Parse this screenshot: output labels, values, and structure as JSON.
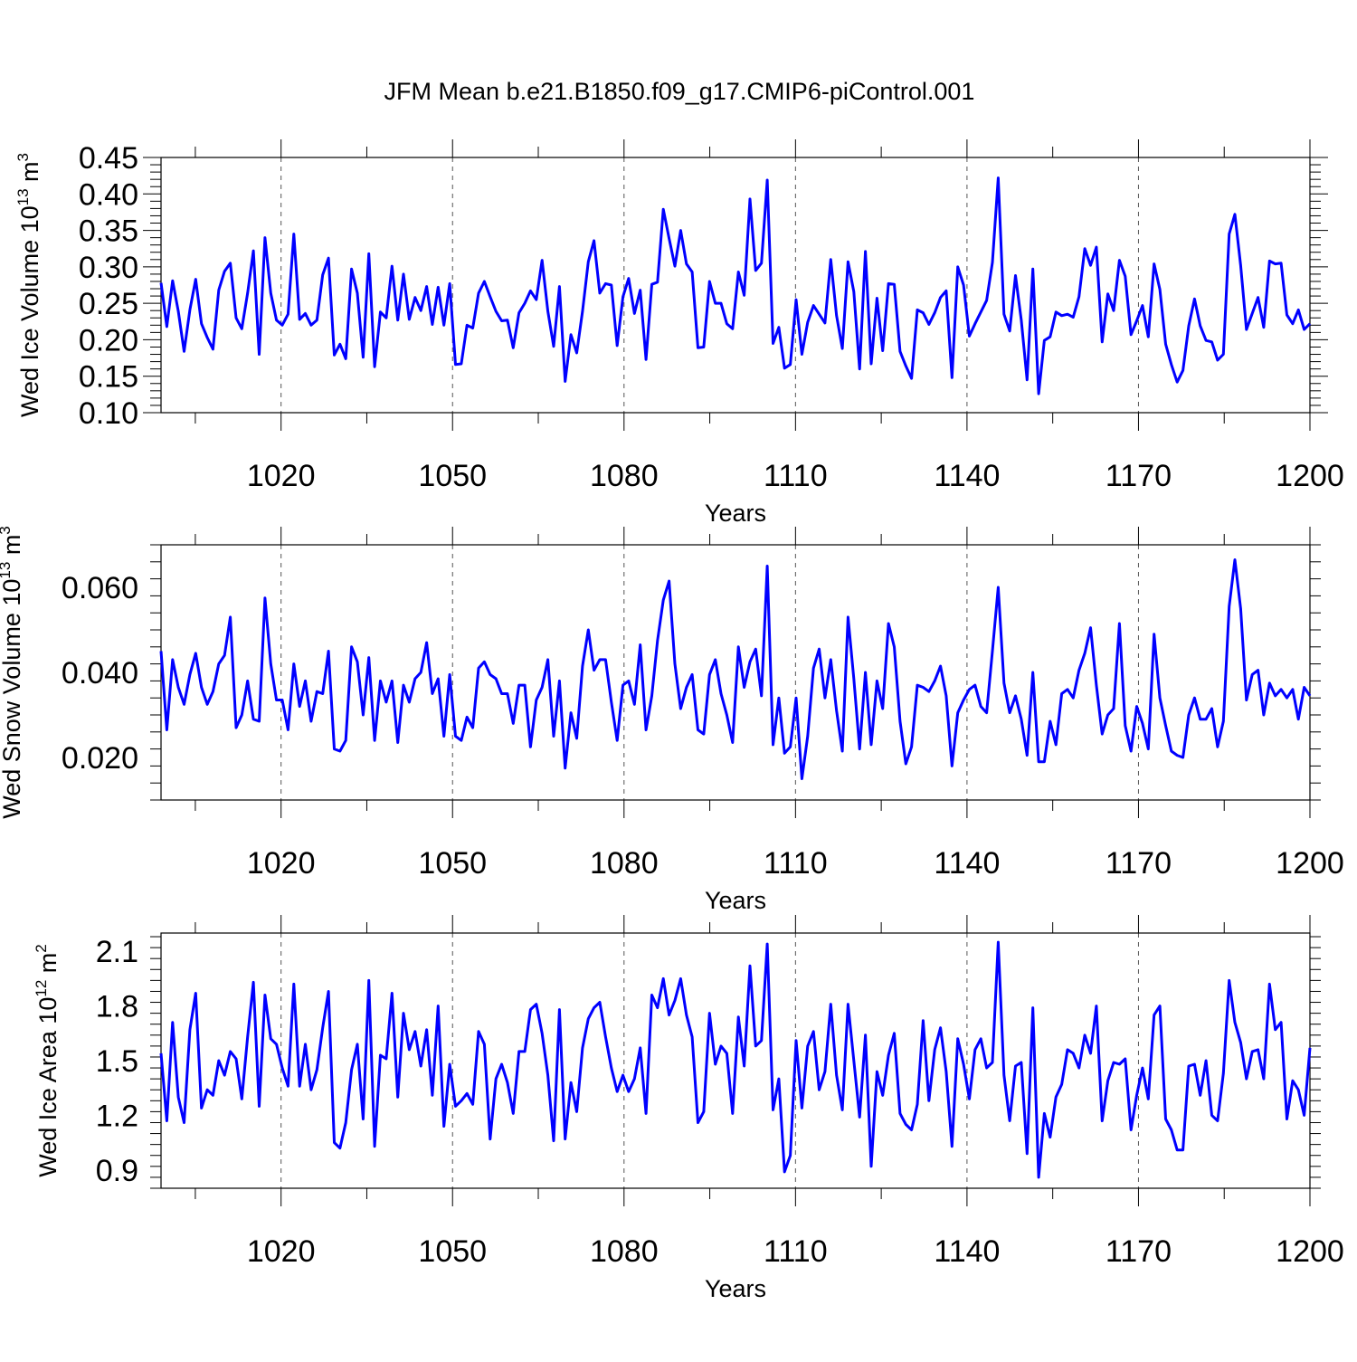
{
  "chart_data": {
    "type": "line",
    "title": "JFM Mean b.e21.B1850.f09_g17.CMIP6-piControl.001",
    "series_color": "#0000ff",
    "panels": [
      {
        "key": "volume",
        "ylabel_text": "Wed Ice Volume 10",
        "ylabel_sup": "13",
        "ylabel_unit": "m",
        "ylabel_unit_sup": "3",
        "xlabel": "Years",
        "xlim": [
          999,
          1200
        ],
        "ylim": [
          0.1,
          0.45
        ],
        "xticks": [
          1020,
          1050,
          1080,
          1110,
          1140,
          1170,
          1200
        ],
        "xtick_labels": [
          "1020",
          "1050",
          "1080",
          "1110",
          "1140",
          "1170",
          "1200"
        ],
        "yticks": [
          0.1,
          0.15,
          0.2,
          0.25,
          0.3,
          0.35,
          0.4,
          0.45
        ],
        "ytick_labels": [
          "0.10",
          "0.15",
          "0.20",
          "0.25",
          "0.30",
          "0.35",
          "0.40",
          "0.45"
        ],
        "values": [
          0.278,
          0.218,
          0.281,
          0.239,
          0.184,
          0.241,
          0.283,
          0.222,
          0.203,
          0.187,
          0.268,
          0.294,
          0.305,
          0.23,
          0.215,
          0.264,
          0.322,
          0.18,
          0.34,
          0.264,
          0.227,
          0.22,
          0.235,
          0.345,
          0.228,
          0.236,
          0.22,
          0.227,
          0.289,
          0.312,
          0.179,
          0.194,
          0.174,
          0.297,
          0.264,
          0.176,
          0.318,
          0.163,
          0.238,
          0.23,
          0.301,
          0.227,
          0.29,
          0.228,
          0.258,
          0.24,
          0.273,
          0.221,
          0.272,
          0.22,
          0.277,
          0.166,
          0.167,
          0.22,
          0.216,
          0.264,
          0.28,
          0.259,
          0.239,
          0.226,
          0.227,
          0.189,
          0.237,
          0.25,
          0.267,
          0.255,
          0.309,
          0.239,
          0.191,
          0.273,
          0.143,
          0.207,
          0.182,
          0.239,
          0.307,
          0.336,
          0.264,
          0.277,
          0.275,
          0.192,
          0.259,
          0.284,
          0.236,
          0.268,
          0.173,
          0.276,
          0.279,
          0.379,
          0.339,
          0.301,
          0.35,
          0.304,
          0.293,
          0.189,
          0.19,
          0.28,
          0.25,
          0.25,
          0.222,
          0.215,
          0.293,
          0.261,
          0.393,
          0.295,
          0.305,
          0.419,
          0.195,
          0.217,
          0.161,
          0.166,
          0.255,
          0.18,
          0.224,
          0.247,
          0.235,
          0.223,
          0.31,
          0.233,
          0.188,
          0.307,
          0.266,
          0.16,
          0.321,
          0.167,
          0.257,
          0.185,
          0.277,
          0.276,
          0.184,
          0.164,
          0.147,
          0.241,
          0.237,
          0.221,
          0.237,
          0.258,
          0.267,
          0.148,
          0.3,
          0.275,
          0.205,
          0.222,
          0.238,
          0.254,
          0.306,
          0.422,
          0.235,
          0.212,
          0.288,
          0.227,
          0.145,
          0.297,
          0.126,
          0.199,
          0.204,
          0.238,
          0.233,
          0.235,
          0.231,
          0.259,
          0.325,
          0.302,
          0.327,
          0.197,
          0.263,
          0.24,
          0.309,
          0.287,
          0.207,
          0.226,
          0.247,
          0.204,
          0.304,
          0.269,
          0.194,
          0.166,
          0.142,
          0.158,
          0.219,
          0.256,
          0.219,
          0.199,
          0.197,
          0.172,
          0.18,
          0.345,
          0.372,
          0.302,
          0.214,
          0.236,
          0.258,
          0.217,
          0.308,
          0.304,
          0.305,
          0.234,
          0.222,
          0.241,
          0.214,
          0.222
        ]
      },
      {
        "key": "snow",
        "ylabel_text": "Wed Snow Volume 10",
        "ylabel_sup": "13",
        "ylabel_unit": "m",
        "ylabel_unit_sup": "3",
        "xlabel": "Years",
        "xlim": [
          999,
          1200
        ],
        "ylim": [
          0.01,
          0.07
        ],
        "xticks": [
          1020,
          1050,
          1080,
          1110,
          1140,
          1170,
          1200
        ],
        "xtick_labels": [
          "1020",
          "1050",
          "1080",
          "1110",
          "1140",
          "1170",
          "1200"
        ],
        "yticks": [
          0.02,
          0.04,
          0.06
        ],
        "ytick_labels": [
          "0.020",
          "0.040",
          "0.060"
        ],
        "values": [
          0.045,
          0.0265,
          0.043,
          0.0365,
          0.0325,
          0.0395,
          0.0445,
          0.0365,
          0.0325,
          0.0355,
          0.042,
          0.044,
          0.053,
          0.027,
          0.03,
          0.038,
          0.029,
          0.0285,
          0.0575,
          0.042,
          0.0335,
          0.0335,
          0.0265,
          0.042,
          0.032,
          0.038,
          0.0285,
          0.0355,
          0.035,
          0.045,
          0.022,
          0.0215,
          0.024,
          0.046,
          0.0425,
          0.03,
          0.0435,
          0.024,
          0.038,
          0.033,
          0.038,
          0.0235,
          0.037,
          0.033,
          0.0385,
          0.04,
          0.047,
          0.035,
          0.0385,
          0.025,
          0.0395,
          0.025,
          0.024,
          0.0295,
          0.027,
          0.041,
          0.0425,
          0.0395,
          0.0385,
          0.035,
          0.035,
          0.028,
          0.037,
          0.037,
          0.0225,
          0.0335,
          0.0365,
          0.043,
          0.025,
          0.038,
          0.0175,
          0.0305,
          0.0245,
          0.0415,
          0.05,
          0.0405,
          0.043,
          0.043,
          0.033,
          0.024,
          0.037,
          0.038,
          0.0325,
          0.0465,
          0.0265,
          0.0345,
          0.0475,
          0.057,
          0.0615,
          0.042,
          0.0315,
          0.0365,
          0.0395,
          0.0265,
          0.0255,
          0.0395,
          0.043,
          0.035,
          0.03,
          0.0235,
          0.046,
          0.0365,
          0.0425,
          0.0455,
          0.0345,
          0.065,
          0.023,
          0.034,
          0.021,
          0.0225,
          0.034,
          0.015,
          0.025,
          0.041,
          0.0455,
          0.034,
          0.043,
          0.031,
          0.0215,
          0.053,
          0.0385,
          0.022,
          0.04,
          0.023,
          0.038,
          0.0315,
          0.0515,
          0.046,
          0.0285,
          0.0185,
          0.0225,
          0.037,
          0.0365,
          0.0355,
          0.038,
          0.0415,
          0.0345,
          0.018,
          0.0305,
          0.0335,
          0.036,
          0.037,
          0.032,
          0.0305,
          0.045,
          0.06,
          0.0375,
          0.0305,
          0.0345,
          0.029,
          0.0205,
          0.04,
          0.019,
          0.019,
          0.0285,
          0.023,
          0.035,
          0.036,
          0.034,
          0.0405,
          0.0445,
          0.0505,
          0.037,
          0.0255,
          0.03,
          0.0315,
          0.0515,
          0.0275,
          0.0215,
          0.032,
          0.028,
          0.022,
          0.049,
          0.034,
          0.0275,
          0.0215,
          0.0205,
          0.02,
          0.03,
          0.034,
          0.029,
          0.029,
          0.0315,
          0.0225,
          0.0285,
          0.0555,
          0.0665,
          0.055,
          0.0335,
          0.0395,
          0.0405,
          0.03,
          0.0375,
          0.0345,
          0.036,
          0.034,
          0.036,
          0.029,
          0.0365,
          0.0345
        ]
      },
      {
        "key": "area",
        "ylabel_text": "Wed Ice Area 10",
        "ylabel_sup": "12",
        "ylabel_unit": "m",
        "ylabel_unit_sup": "2",
        "xlabel": "Years",
        "xlim": [
          999,
          1200
        ],
        "ylim": [
          0.8,
          2.2
        ],
        "xticks": [
          1020,
          1050,
          1080,
          1110,
          1140,
          1170,
          1200
        ],
        "xtick_labels": [
          "1020",
          "1050",
          "1080",
          "1110",
          "1140",
          "1170",
          "1200"
        ],
        "yticks": [
          0.9,
          1.2,
          1.5,
          1.8,
          2.1
        ],
        "ytick_labels": [
          "0.9",
          "1.2",
          "1.5",
          "1.8",
          "2.1"
        ],
        "values": [
          1.54,
          1.17,
          1.71,
          1.3,
          1.16,
          1.67,
          1.87,
          1.24,
          1.34,
          1.31,
          1.5,
          1.42,
          1.55,
          1.51,
          1.29,
          1.63,
          1.93,
          1.25,
          1.86,
          1.62,
          1.59,
          1.46,
          1.36,
          1.92,
          1.36,
          1.59,
          1.34,
          1.45,
          1.68,
          1.88,
          1.05,
          1.02,
          1.16,
          1.45,
          1.59,
          1.18,
          1.94,
          1.03,
          1.53,
          1.51,
          1.87,
          1.3,
          1.76,
          1.56,
          1.66,
          1.47,
          1.67,
          1.31,
          1.8,
          1.14,
          1.48,
          1.25,
          1.28,
          1.32,
          1.26,
          1.66,
          1.59,
          1.07,
          1.4,
          1.48,
          1.38,
          1.21,
          1.55,
          1.55,
          1.78,
          1.81,
          1.65,
          1.42,
          1.06,
          1.78,
          1.07,
          1.38,
          1.22,
          1.57,
          1.73,
          1.79,
          1.82,
          1.63,
          1.46,
          1.33,
          1.42,
          1.33,
          1.4,
          1.57,
          1.21,
          1.86,
          1.79,
          1.95,
          1.75,
          1.83,
          1.95,
          1.75,
          1.63,
          1.16,
          1.22,
          1.76,
          1.48,
          1.58,
          1.54,
          1.21,
          1.74,
          1.47,
          2.02,
          1.58,
          1.61,
          2.14,
          1.23,
          1.4,
          0.89,
          0.98,
          1.61,
          1.24,
          1.58,
          1.66,
          1.34,
          1.44,
          1.81,
          1.42,
          1.23,
          1.81,
          1.5,
          1.19,
          1.64,
          0.92,
          1.44,
          1.31,
          1.53,
          1.65,
          1.21,
          1.15,
          1.12,
          1.26,
          1.72,
          1.28,
          1.56,
          1.68,
          1.44,
          1.03,
          1.62,
          1.48,
          1.29,
          1.56,
          1.62,
          1.46,
          1.49,
          2.15,
          1.42,
          1.17,
          1.47,
          1.49,
          0.99,
          1.79,
          0.86,
          1.21,
          1.08,
          1.3,
          1.37,
          1.56,
          1.54,
          1.46,
          1.64,
          1.54,
          1.8,
          1.17,
          1.39,
          1.49,
          1.48,
          1.51,
          1.12,
          1.31,
          1.46,
          1.29,
          1.75,
          1.8,
          1.18,
          1.12,
          1.01,
          1.01,
          1.47,
          1.48,
          1.31,
          1.5,
          1.2,
          1.17,
          1.43,
          1.94,
          1.71,
          1.6,
          1.4,
          1.55,
          1.56,
          1.4,
          1.92,
          1.67,
          1.71,
          1.18,
          1.39,
          1.34,
          1.2,
          1.57
        ]
      }
    ]
  }
}
